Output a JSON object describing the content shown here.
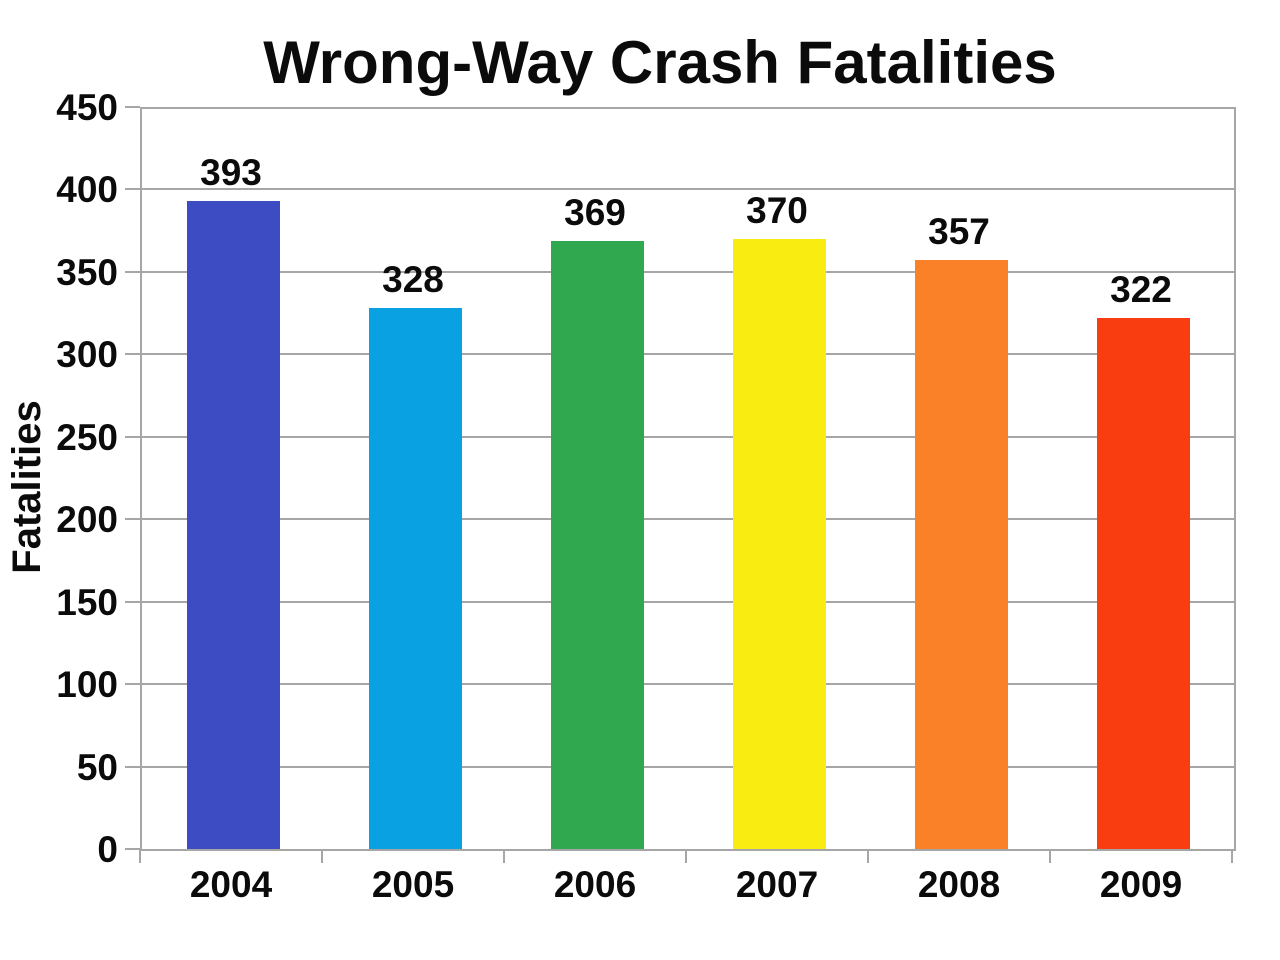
{
  "chart_data": {
    "type": "bar",
    "title": "Wrong-Way Crash Fatalities",
    "xlabel": "",
    "ylabel": "Fatalities",
    "categories": [
      "2004",
      "2005",
      "2006",
      "2007",
      "2008",
      "2009"
    ],
    "values": [
      393,
      328,
      369,
      370,
      357,
      322
    ],
    "data_labels": [
      393,
      328,
      369,
      370,
      357,
      322
    ],
    "bar_colors": [
      "#3d4cc3",
      "#0aa1e2",
      "#30a84f",
      "#f9ec10",
      "#fb8128",
      "#fa3d10"
    ],
    "ylim": [
      0,
      450
    ],
    "yticks": [
      0,
      50,
      100,
      150,
      200,
      250,
      300,
      350,
      400,
      450
    ],
    "grid": true,
    "legend_position": "none",
    "colors": {
      "text": "#0b0b0b",
      "grid": "#a6a6a6",
      "background": "#ffffff"
    }
  }
}
